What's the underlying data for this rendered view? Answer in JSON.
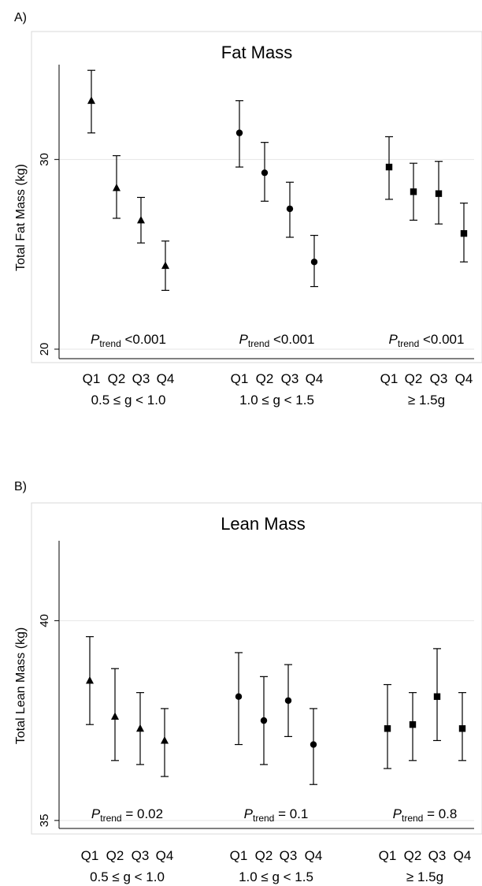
{
  "chart_data": [
    {
      "panel_label": "A)",
      "type": "scatter",
      "title": "Fat Mass",
      "ylabel": "Total Fat Mass (kg)",
      "ylim": [
        19.5,
        35.0
      ],
      "yticks": [
        20,
        30
      ],
      "grid": "horizontal",
      "x_tick_labels": [
        "Q1",
        "Q2",
        "Q3",
        "Q4"
      ],
      "groups": [
        {
          "label": "0.5 ≤ g < 1.0",
          "marker": "triangle",
          "p_prefix": "P",
          "p_sub": "trend",
          "p_rest": " <0.001",
          "points": [
            {
              "x": "Q1",
              "y": 33.1,
              "lo": 31.4,
              "hi": 34.7
            },
            {
              "x": "Q2",
              "y": 28.5,
              "lo": 26.9,
              "hi": 30.2
            },
            {
              "x": "Q3",
              "y": 26.8,
              "lo": 25.6,
              "hi": 28.0
            },
            {
              "x": "Q4",
              "y": 24.4,
              "lo": 23.1,
              "hi": 25.7
            }
          ]
        },
        {
          "label": "1.0 ≤ g < 1.5",
          "marker": "circle",
          "p_prefix": "P",
          "p_sub": "trend",
          "p_rest": " <0.001",
          "points": [
            {
              "x": "Q1",
              "y": 31.4,
              "lo": 29.6,
              "hi": 33.1
            },
            {
              "x": "Q2",
              "y": 29.3,
              "lo": 27.8,
              "hi": 30.9
            },
            {
              "x": "Q3",
              "y": 27.4,
              "lo": 25.9,
              "hi": 28.8
            },
            {
              "x": "Q4",
              "y": 24.6,
              "lo": 23.3,
              "hi": 26.0
            }
          ]
        },
        {
          "label": "≥ 1.5g",
          "marker": "square",
          "p_prefix": "P",
          "p_sub": "trend",
          "p_rest": " <0.001",
          "points": [
            {
              "x": "Q1",
              "y": 29.6,
              "lo": 27.9,
              "hi": 31.2
            },
            {
              "x": "Q2",
              "y": 28.3,
              "lo": 26.8,
              "hi": 29.8
            },
            {
              "x": "Q3",
              "y": 28.2,
              "lo": 26.6,
              "hi": 29.9
            },
            {
              "x": "Q4",
              "y": 26.1,
              "lo": 24.6,
              "hi": 27.7
            }
          ]
        }
      ]
    },
    {
      "panel_label": "B)",
      "type": "scatter",
      "title": "Lean Mass",
      "ylabel": "Total Lean Mass (kg)",
      "ylim": [
        34.8,
        42.0
      ],
      "yticks": [
        35,
        40
      ],
      "grid": "horizontal",
      "x_tick_labels": [
        "Q1",
        "Q2",
        "Q3",
        "Q4"
      ],
      "groups": [
        {
          "label": "0.5 ≤ g < 1.0",
          "marker": "triangle",
          "p_prefix": "P",
          "p_sub": "trend",
          "p_rest": " = 0.02",
          "points": [
            {
              "x": "Q1",
              "y": 38.5,
              "lo": 37.4,
              "hi": 39.6
            },
            {
              "x": "Q2",
              "y": 37.6,
              "lo": 36.5,
              "hi": 38.8
            },
            {
              "x": "Q3",
              "y": 37.3,
              "lo": 36.4,
              "hi": 38.2
            },
            {
              "x": "Q4",
              "y": 37.0,
              "lo": 36.1,
              "hi": 37.8
            }
          ]
        },
        {
          "label": "1.0 ≤ g < 1.5",
          "marker": "circle",
          "p_prefix": "P",
          "p_sub": "trend",
          "p_rest": " = 0.1",
          "points": [
            {
              "x": "Q1",
              "y": 38.1,
              "lo": 36.9,
              "hi": 39.2
            },
            {
              "x": "Q2",
              "y": 37.5,
              "lo": 36.4,
              "hi": 38.6
            },
            {
              "x": "Q3",
              "y": 38.0,
              "lo": 37.1,
              "hi": 38.9
            },
            {
              "x": "Q4",
              "y": 36.9,
              "lo": 35.9,
              "hi": 37.8
            }
          ]
        },
        {
          "label": "≥ 1.5g",
          "marker": "square",
          "p_prefix": "P",
          "p_sub": "trend",
          "p_rest": " = 0.8",
          "points": [
            {
              "x": "Q1",
              "y": 37.3,
              "lo": 36.3,
              "hi": 38.4
            },
            {
              "x": "Q2",
              "y": 37.4,
              "lo": 36.5,
              "hi": 38.2
            },
            {
              "x": "Q3",
              "y": 38.1,
              "lo": 37.0,
              "hi": 39.3
            },
            {
              "x": "Q4",
              "y": 37.3,
              "lo": 36.5,
              "hi": 38.2
            }
          ]
        }
      ]
    }
  ]
}
